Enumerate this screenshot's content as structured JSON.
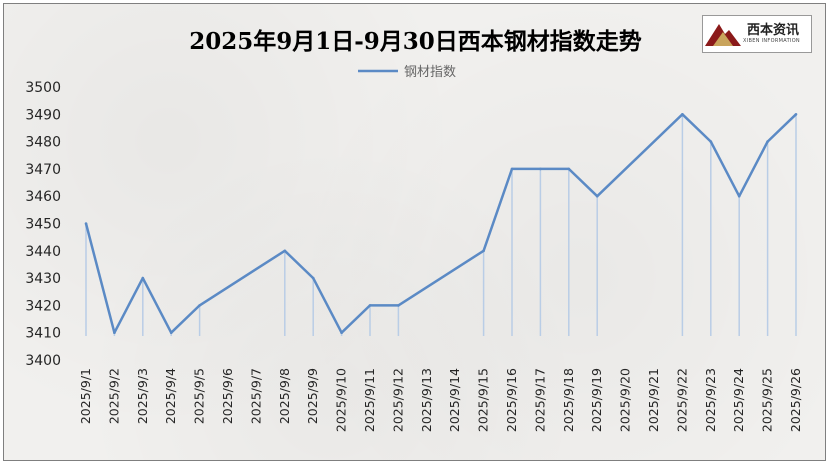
{
  "chart_data": {
    "type": "line",
    "title": "2025年9月1日-9月30日西本钢材指数走势",
    "categories": [
      "2025/9/1",
      "2025/9/2",
      "2025/9/3",
      "2025/9/4",
      "2025/9/5",
      "2025/9/6",
      "2025/9/7",
      "2025/9/8",
      "2025/9/9",
      "2025/9/10",
      "2025/9/11",
      "2025/9/12",
      "2025/9/13",
      "2025/9/14",
      "2025/9/15",
      "2025/9/16",
      "2025/9/17",
      "2025/9/18",
      "2025/9/19",
      "2025/9/20",
      "2025/9/21",
      "2025/9/22",
      "2025/9/23",
      "2025/9/24",
      "2025/9/25",
      "2025/9/26"
    ],
    "series": [
      {
        "name": "钢材指数",
        "values": [
          3450,
          3410,
          3430,
          3410,
          3420,
          null,
          null,
          3440,
          3430,
          3410,
          3420,
          3420,
          null,
          null,
          3440,
          3470,
          3470,
          3470,
          3460,
          null,
          null,
          3490,
          3480,
          3460,
          3480,
          3490
        ]
      }
    ],
    "ylim": [
      3400,
      3500
    ],
    "yticks": [
      3400,
      3410,
      3420,
      3430,
      3440,
      3450,
      3460,
      3470,
      3480,
      3490,
      3500
    ],
    "xlabel": "",
    "ylabel": "",
    "grid": false,
    "legend": "top-center",
    "drop_lines": true,
    "line_color": "#5b8ac5"
  },
  "logo": {
    "text": "西本资讯",
    "sub": "XIBEN INFORMATION"
  }
}
